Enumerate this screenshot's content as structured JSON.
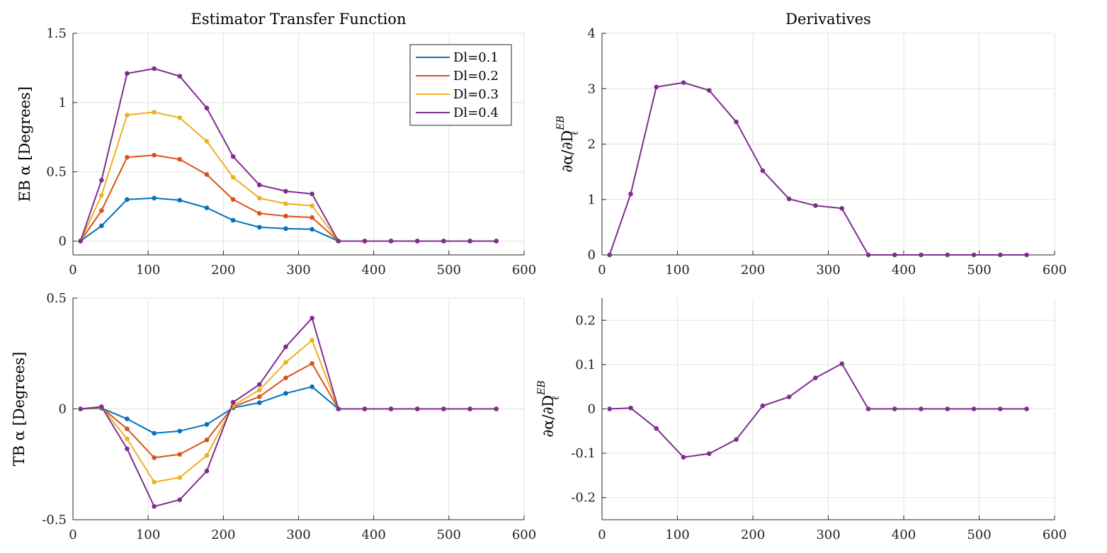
{
  "chart_data": [
    {
      "id": "eb-transfer",
      "type": "line",
      "title": "Estimator Transfer Function",
      "xlabel": "",
      "ylabel": "EB α [Degrees]",
      "xlim": [
        0,
        600
      ],
      "ylim": [
        -0.1,
        1.5
      ],
      "xticks": [
        0,
        100,
        200,
        300,
        400,
        500,
        600
      ],
      "xtick_labels": [
        "0",
        "100",
        "200",
        "300",
        "400",
        "500",
        "600"
      ],
      "yticks": [
        0,
        0.5,
        1,
        1.5
      ],
      "ytick_labels": [
        "0",
        "0.5",
        "1",
        "1.5"
      ],
      "grid": true,
      "legend": "top-right",
      "x": [
        10,
        38,
        72,
        108,
        142,
        178,
        213,
        248,
        283,
        318,
        353,
        388,
        423,
        458,
        493,
        528,
        563
      ],
      "series": [
        {
          "name": "Dl=0.1",
          "color": "#0072BD",
          "values": [
            0,
            0.11,
            0.3,
            0.31,
            0.295,
            0.24,
            0.15,
            0.1,
            0.09,
            0.085,
            0,
            0,
            0,
            0,
            0,
            0,
            0
          ]
        },
        {
          "name": "Dl=0.2",
          "color": "#D95319",
          "values": [
            0,
            0.22,
            0.605,
            0.62,
            0.59,
            0.48,
            0.3,
            0.2,
            0.18,
            0.17,
            0,
            0,
            0,
            0,
            0,
            0,
            0
          ]
        },
        {
          "name": "Dl=0.3",
          "color": "#EDB120",
          "values": [
            0,
            0.33,
            0.91,
            0.93,
            0.89,
            0.72,
            0.46,
            0.31,
            0.27,
            0.255,
            0,
            0,
            0,
            0,
            0,
            0,
            0
          ]
        },
        {
          "name": "Dl=0.4",
          "color": "#7E2F8E",
          "values": [
            0,
            0.44,
            1.21,
            1.245,
            1.19,
            0.96,
            0.61,
            0.405,
            0.36,
            0.34,
            0,
            0,
            0,
            0,
            0,
            0,
            0
          ]
        }
      ]
    },
    {
      "id": "eb-derivative",
      "type": "line",
      "title": "Derivatives",
      "xlabel": "",
      "ylabel": "∂α/∂D",
      "ylabel_sub": "ℓ",
      "ylabel_sup": "EB",
      "xlim": [
        0,
        600
      ],
      "ylim": [
        0,
        4
      ],
      "xticks": [
        0,
        100,
        200,
        300,
        400,
        500,
        600
      ],
      "xtick_labels": [
        "0",
        "100",
        "200",
        "300",
        "400",
        "500",
        "600"
      ],
      "yticks": [
        0,
        1,
        2,
        3,
        4
      ],
      "ytick_labels": [
        "0",
        "1",
        "2",
        "3",
        "4"
      ],
      "grid": true,
      "x": [
        10,
        38,
        72,
        108,
        142,
        178,
        213,
        248,
        283,
        318,
        353,
        388,
        423,
        458,
        493,
        528,
        563
      ],
      "series": [
        {
          "color": "#7E2F8E",
          "values": [
            0,
            1.1,
            3.03,
            3.11,
            2.97,
            2.4,
            1.52,
            1.01,
            0.89,
            0.84,
            0,
            0,
            0,
            0,
            0,
            0,
            0
          ]
        }
      ]
    },
    {
      "id": "tb-transfer",
      "type": "line",
      "title": "",
      "xlabel": "",
      "ylabel": "TB α [Degrees]",
      "xlim": [
        0,
        600
      ],
      "ylim": [
        -0.5,
        0.5
      ],
      "xticks": [
        0,
        100,
        200,
        300,
        400,
        500,
        600
      ],
      "xtick_labels": [
        "0",
        "100",
        "200",
        "300",
        "400",
        "500",
        "600"
      ],
      "yticks": [
        -0.5,
        0,
        0.5
      ],
      "ytick_labels": [
        "-0.5",
        "0",
        "0.5"
      ],
      "grid": true,
      "x": [
        10,
        38,
        72,
        108,
        142,
        178,
        213,
        248,
        283,
        318,
        353,
        388,
        423,
        458,
        493,
        528,
        563
      ],
      "series": [
        {
          "name": "Dl=0.1",
          "color": "#0072BD",
          "values": [
            0,
            0.003,
            -0.045,
            -0.11,
            -0.1,
            -0.07,
            0.005,
            0.028,
            0.07,
            0.1,
            0,
            0,
            0,
            0,
            0,
            0,
            0
          ]
        },
        {
          "name": "Dl=0.2",
          "color": "#D95319",
          "values": [
            0,
            0.006,
            -0.09,
            -0.22,
            -0.205,
            -0.14,
            0.01,
            0.055,
            0.14,
            0.205,
            0,
            0,
            0,
            0,
            0,
            0,
            0
          ]
        },
        {
          "name": "Dl=0.3",
          "color": "#EDB120",
          "values": [
            0,
            0.008,
            -0.135,
            -0.33,
            -0.31,
            -0.21,
            0.015,
            0.085,
            0.21,
            0.31,
            0,
            0,
            0,
            0,
            0,
            0,
            0
          ]
        },
        {
          "name": "Dl=0.4",
          "color": "#7E2F8E",
          "values": [
            0,
            0.01,
            -0.18,
            -0.44,
            -0.41,
            -0.28,
            0.03,
            0.11,
            0.28,
            0.41,
            0,
            0,
            0,
            0,
            0,
            0,
            0
          ]
        }
      ]
    },
    {
      "id": "tb-derivative",
      "type": "line",
      "title": "",
      "xlabel": "",
      "ylabel": "∂α/∂D",
      "ylabel_sub": "ℓ",
      "ylabel_sup": "EB",
      "xlim": [
        0,
        600
      ],
      "ylim": [
        -0.25,
        0.25
      ],
      "xticks": [
        0,
        100,
        200,
        300,
        400,
        500,
        600
      ],
      "xtick_labels": [
        "0",
        "100",
        "200",
        "300",
        "400",
        "500",
        "600"
      ],
      "yticks": [
        -0.2,
        -0.1,
        0,
        0.1,
        0.2
      ],
      "ytick_labels": [
        "-0.2",
        "-0.1",
        "0",
        "0.1",
        "0.2"
      ],
      "grid": true,
      "x": [
        10,
        38,
        72,
        108,
        142,
        178,
        213,
        248,
        283,
        318,
        353,
        388,
        423,
        458,
        493,
        528,
        563
      ],
      "series": [
        {
          "color": "#7E2F8E",
          "values": [
            0,
            0.002,
            -0.044,
            -0.109,
            -0.101,
            -0.069,
            0.007,
            0.027,
            0.07,
            0.102,
            0,
            0,
            0,
            0,
            0,
            0,
            0
          ]
        }
      ]
    }
  ]
}
